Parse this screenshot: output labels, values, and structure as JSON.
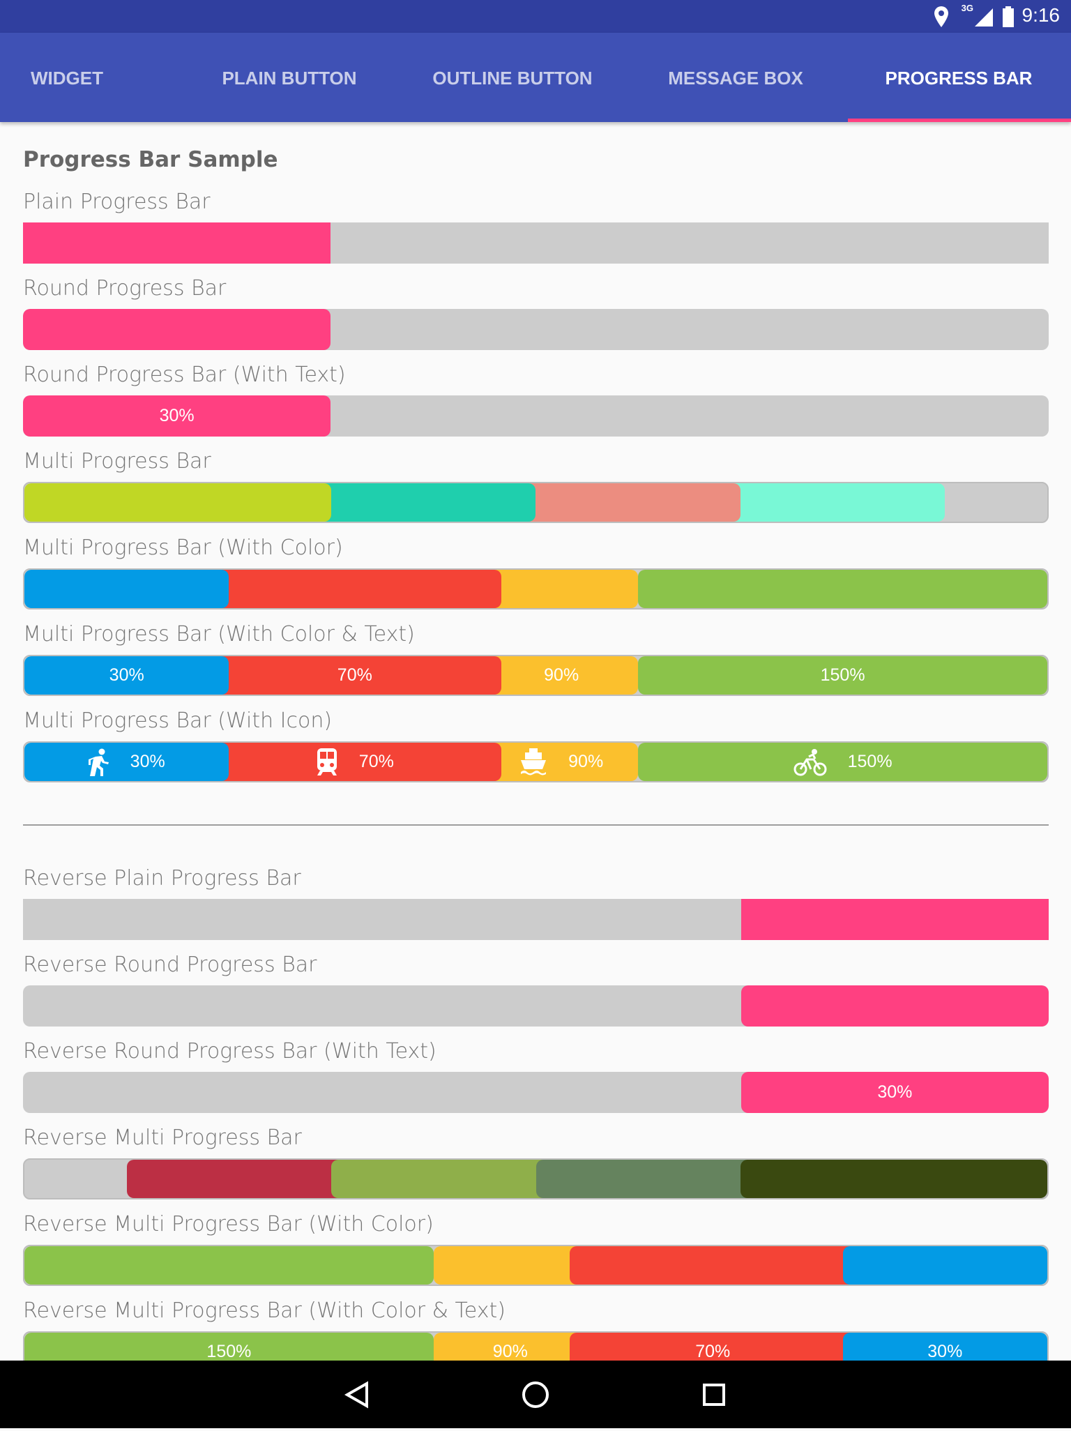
{
  "status_bar": {
    "network": "3G",
    "time": "9:16"
  },
  "tabs": [
    "WIDGET",
    "PLAIN BUTTON",
    "OUTLINE BUTTON",
    "MESSAGE BOX",
    "PROGRESS BAR"
  ],
  "section_title": "Progress Bar Sample",
  "items": [
    {
      "label": "Plain Progress Bar"
    },
    {
      "label": "Round Progress Bar"
    },
    {
      "label": "Round Progress Bar (With Text)",
      "texts": [
        "30%"
      ]
    },
    {
      "label": "Multi Progress Bar"
    },
    {
      "label": "Multi Progress Bar (With Color)"
    },
    {
      "label": "Multi Progress Bar (With Color & Text)",
      "texts": [
        "30%",
        "70%",
        "90%",
        "150%"
      ]
    },
    {
      "label": "Multi Progress Bar (With Icon)",
      "texts": [
        "30%",
        "70%",
        "90%",
        "150%"
      ]
    }
  ],
  "reverse_items": [
    {
      "label": "Reverse Plain Progress Bar"
    },
    {
      "label": "Reverse Round Progress Bar"
    },
    {
      "label": "Reverse Round Progress Bar (With Text)",
      "texts": [
        "30%"
      ]
    },
    {
      "label": "Reverse Multi Progress Bar"
    },
    {
      "label": "Reverse Multi Progress Bar (With Color)"
    },
    {
      "label": "Reverse Multi Progress Bar (With Color & Text)",
      "texts": [
        "150%",
        "90%",
        "70%",
        "30%"
      ]
    }
  ]
}
